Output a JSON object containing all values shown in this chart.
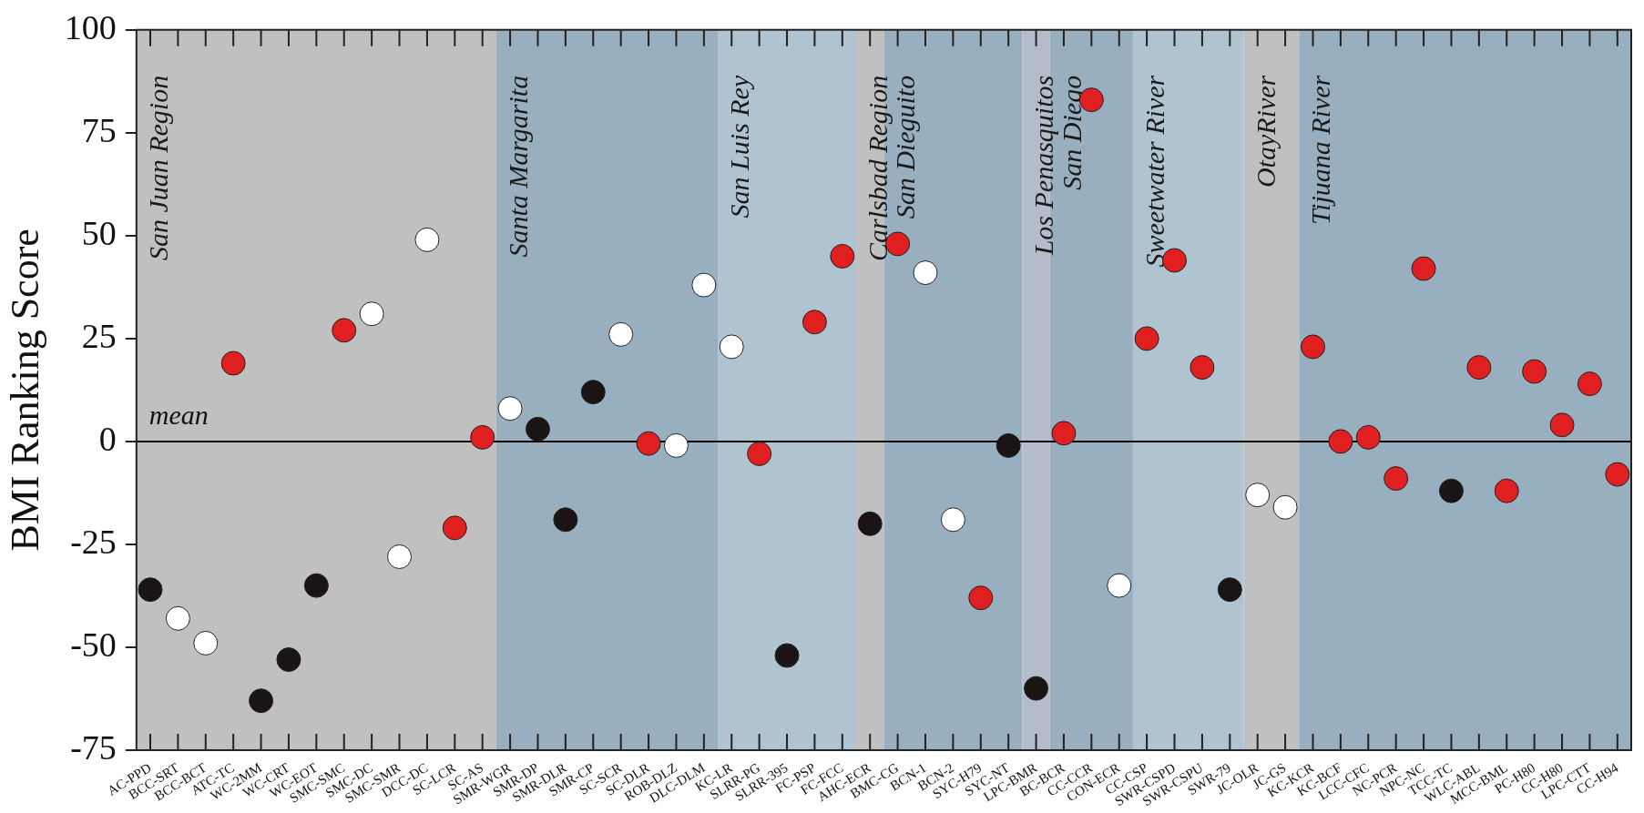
{
  "chart_data": {
    "type": "scatter",
    "ylabel": "BMI Ranking Score",
    "marker": "circle",
    "categories": [
      "AC-PPD",
      "BCC-SRT",
      "BCC-BCT",
      "ATC-TC",
      "WC-2MM",
      "WC-CRT",
      "WC-EOT",
      "SMC-SMC",
      "SMC-DC",
      "SMC-SMR",
      "DCC-DC",
      "SC-LCR",
      "SC-AS",
      "SMR-WGR",
      "SMR-DP",
      "SMR-DLR",
      "SMR-CP",
      "SC-SCR",
      "SC-DLR",
      "ROB-DLZ",
      "DLC-DLM",
      "KC-LR",
      "SLRR-PG",
      "SLRR-395",
      "FC-PSP",
      "FC-FCC",
      "AHC-ECR",
      "BMC-CG",
      "BCN-1",
      "BCN-2",
      "SYC-H79",
      "SYC-NT",
      "LPC-BMR",
      "BC-BCR",
      "CC-CCR",
      "CON-ECR",
      "CC-CSP",
      "SWR-CSPD",
      "SWR-CSPU",
      "SWR-79",
      "JC-OLR",
      "JC-GS",
      "KC-KCR",
      "KC-BCF",
      "LCC-CFC",
      "NC-PCR",
      "NPC-NC",
      "TCC-TC",
      "WLC-ABL",
      "MCC-BML",
      "PC-H80",
      "CC-H80",
      "LPC-CTT",
      "CC-H94"
    ],
    "series": [
      {
        "color": "#1a1414",
        "values": [
          -36,
          null,
          null,
          null,
          -63,
          -53,
          -35,
          null,
          null,
          null,
          null,
          null,
          null,
          null,
          3,
          -19,
          12,
          null,
          null,
          null,
          null,
          null,
          null,
          -52,
          null,
          null,
          -20,
          null,
          null,
          null,
          null,
          -1,
          -60,
          null,
          null,
          null,
          null,
          null,
          null,
          -36,
          null,
          null,
          null,
          null,
          null,
          null,
          null,
          -12,
          null,
          null,
          null,
          null,
          null,
          null
        ]
      },
      {
        "color": "#ffffff",
        "values": [
          null,
          -43,
          -49,
          null,
          null,
          null,
          null,
          null,
          31,
          -28,
          49,
          null,
          null,
          8,
          null,
          null,
          null,
          26,
          null,
          -1,
          38,
          23,
          null,
          null,
          null,
          null,
          null,
          null,
          41,
          -19,
          null,
          null,
          null,
          null,
          null,
          -35,
          null,
          null,
          null,
          null,
          -13,
          -16,
          null,
          null,
          null,
          null,
          null,
          null,
          null,
          null,
          null,
          null,
          null,
          null
        ]
      },
      {
        "color": "#e02020",
        "values": [
          null,
          null,
          null,
          19,
          null,
          null,
          null,
          27,
          null,
          null,
          null,
          -21,
          1,
          null,
          null,
          null,
          null,
          null,
          -0.5,
          null,
          null,
          null,
          -3,
          null,
          29,
          45,
          null,
          48,
          null,
          null,
          -38,
          null,
          null,
          2,
          83,
          null,
          25,
          44,
          18,
          null,
          null,
          null,
          23,
          0,
          1,
          -9,
          42,
          null,
          18,
          -12,
          17,
          4,
          14,
          -8
        ]
      }
    ],
    "ylim": [
      -75,
      100
    ],
    "yticks": [
      -75,
      -50,
      -25,
      0,
      25,
      50,
      75,
      100
    ],
    "ref_lines": [
      {
        "axis": "y",
        "value": 0,
        "label": "mean",
        "color": "#000000"
      }
    ],
    "bands": [
      {
        "axis": "x",
        "from": "AC-PPD",
        "to": "SC-AS",
        "label": "San Juan Region",
        "color": "#c0c0c0"
      },
      {
        "axis": "x",
        "from": "SMR-WGR",
        "to": "DLC-DLM",
        "label": "Santa Margarita",
        "color": "#98afc0"
      },
      {
        "axis": "x",
        "from": "KC-LR",
        "to": "FC-FCC",
        "label": "San Luis Rey",
        "color": "#afc4d0"
      },
      {
        "axis": "x",
        "from": "AHC-ECR",
        "to": "AHC-ECR",
        "label": "Carlsbad Region",
        "color": "#c0c0c0"
      },
      {
        "axis": "x",
        "from": "BMC-CG",
        "to": "SYC-NT",
        "label": "San Dieguito",
        "color": "#98afc0"
      },
      {
        "axis": "x",
        "from": "LPC-BMR",
        "to": "LPC-BMR",
        "label": "Los Penasquitos",
        "color": "#b4bccb"
      },
      {
        "axis": "x",
        "from": "BC-BCR",
        "to": "CON-ECR",
        "label": "San Diego",
        "color": "#98afc0"
      },
      {
        "axis": "x",
        "from": "CC-CSP",
        "to": "SWR-79",
        "label": "Sweetwater River",
        "color": "#afc4d0"
      },
      {
        "axis": "x",
        "from": "JC-OLR",
        "to": "JC-GS",
        "label": "OtayRiver",
        "color": "#c0c0c0"
      },
      {
        "axis": "x",
        "from": "KC-KCR",
        "to": "CC-H94",
        "label": "Tijuana River",
        "color": "#98afc0"
      }
    ]
  }
}
